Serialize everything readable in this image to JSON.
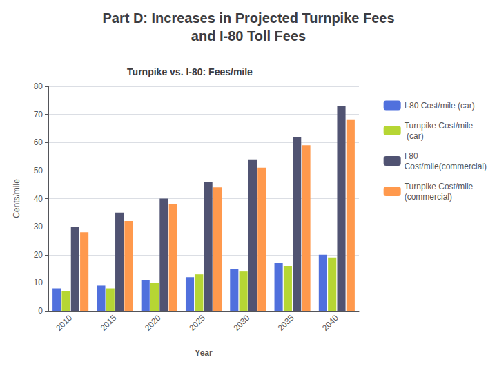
{
  "chart_data": {
    "type": "bar",
    "title": "Part D: Increases in Projected Turnpike Fees\nand I-80 Toll Fees",
    "subtitle": "Turnpike vs. I-80: Fees/mile",
    "xlabel": "Year",
    "ylabel": "Cents/mile",
    "categories": [
      "2010",
      "2015",
      "2020",
      "2025",
      "2030",
      "2035",
      "2040"
    ],
    "series": [
      {
        "name": "I-80 Cost/mile (car)",
        "values": [
          8,
          9,
          11,
          12,
          15,
          17,
          20
        ]
      },
      {
        "name": "Turnpike Cost/mile\n (car)",
        "values": [
          7,
          8,
          10,
          13,
          14,
          16,
          19
        ]
      },
      {
        "name": "I 80\nCost/mile(commercial)",
        "values": [
          30,
          35,
          40,
          46,
          54,
          62,
          73
        ]
      },
      {
        "name": "Turnpike Cost/mile\n(commercial)",
        "values": [
          28,
          32,
          38,
          44,
          51,
          59,
          68
        ]
      }
    ],
    "ylim": [
      0,
      80
    ],
    "yticks": [
      0,
      10,
      20,
      30,
      40,
      50,
      60,
      70,
      80
    ],
    "grid": true,
    "legend": "right"
  }
}
